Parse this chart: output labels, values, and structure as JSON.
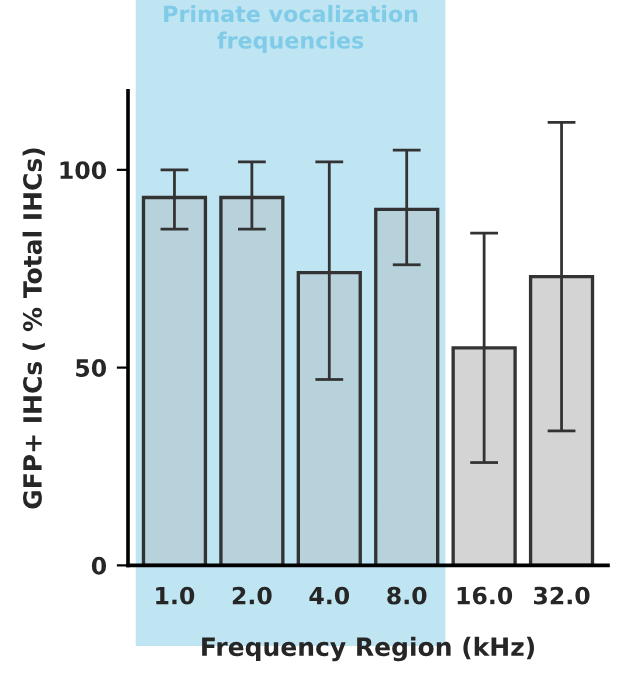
{
  "chart_data": {
    "type": "bar",
    "xlabel": "Frequency Region (kHz)",
    "ylabel": "GFP+ IHCs ( % Total IHCs)",
    "categories": [
      "1.0",
      "2.0",
      "4.0",
      "8.0",
      "16.0",
      "32.0"
    ],
    "values": [
      93,
      93,
      74,
      90,
      55,
      73
    ],
    "colors": [
      "#b8d2dc",
      "#b8d2dc",
      "#b8d2dc",
      "#b8d2dc",
      "#d4d4d4",
      "#d4d4d4"
    ],
    "errors": [
      [
        85,
        100
      ],
      [
        85,
        102
      ],
      [
        47,
        102
      ],
      [
        76,
        105
      ],
      [
        26,
        84
      ],
      [
        34,
        112
      ]
    ],
    "ylim": [
      0,
      120
    ],
    "yticks": [
      0,
      50,
      100
    ],
    "grid": false,
    "legend": false,
    "bands": [
      {
        "axis": "x",
        "from": "1.0",
        "to": "8.0",
        "label": "Primate vocalization frequencies",
        "color": "#bfe4f2"
      }
    ]
  }
}
